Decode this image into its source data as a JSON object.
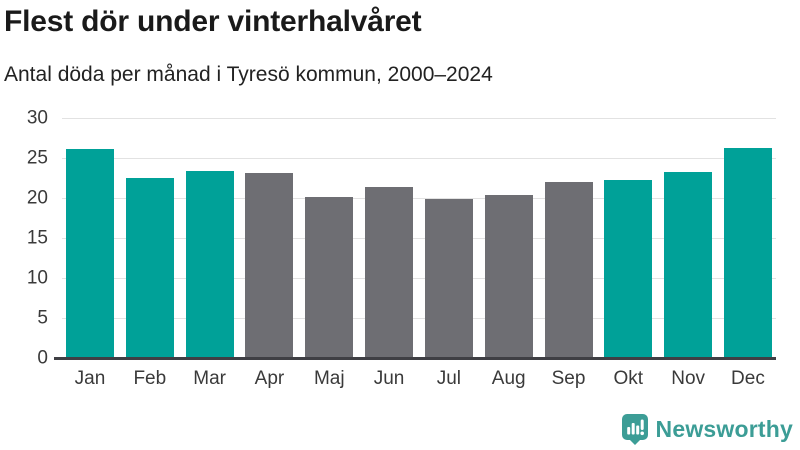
{
  "header": {
    "title": "Flest dör under vinterhalvåret",
    "subtitle": "Antal döda per månad i Tyresö kommun, 2000–2024"
  },
  "chart_data": {
    "type": "bar",
    "title": "Flest dör under vinterhalvåret",
    "subtitle": "Antal döda per månad i Tyresö kommun, 2000–2024",
    "categories": [
      "Jan",
      "Feb",
      "Mar",
      "Apr",
      "Maj",
      "Jun",
      "Jul",
      "Aug",
      "Sep",
      "Okt",
      "Nov",
      "Dec"
    ],
    "values": [
      26.1,
      22.5,
      23.4,
      23.1,
      20.1,
      21.4,
      19.9,
      20.4,
      22.0,
      22.3,
      23.3,
      26.2
    ],
    "highlighted": [
      true,
      true,
      true,
      false,
      false,
      false,
      false,
      false,
      false,
      true,
      true,
      true
    ],
    "xlabel": "",
    "ylabel": "",
    "ylim": [
      0,
      30
    ],
    "yticks": [
      0,
      5,
      10,
      15,
      20,
      25,
      30
    ],
    "grid": true,
    "legend": "none",
    "colors": {
      "highlight_bar": "#00a198",
      "default_bar": "#6e6e73",
      "gridline": "#e2e2e2",
      "axis_line": "#3f3f44",
      "tick_text": "#3a3a3a"
    }
  },
  "branding": {
    "logo_text": "Newsworthy",
    "logo_icon": "newsworthy-speech-bubble-bar-chart-icon",
    "logo_color": "#3c9d96"
  }
}
